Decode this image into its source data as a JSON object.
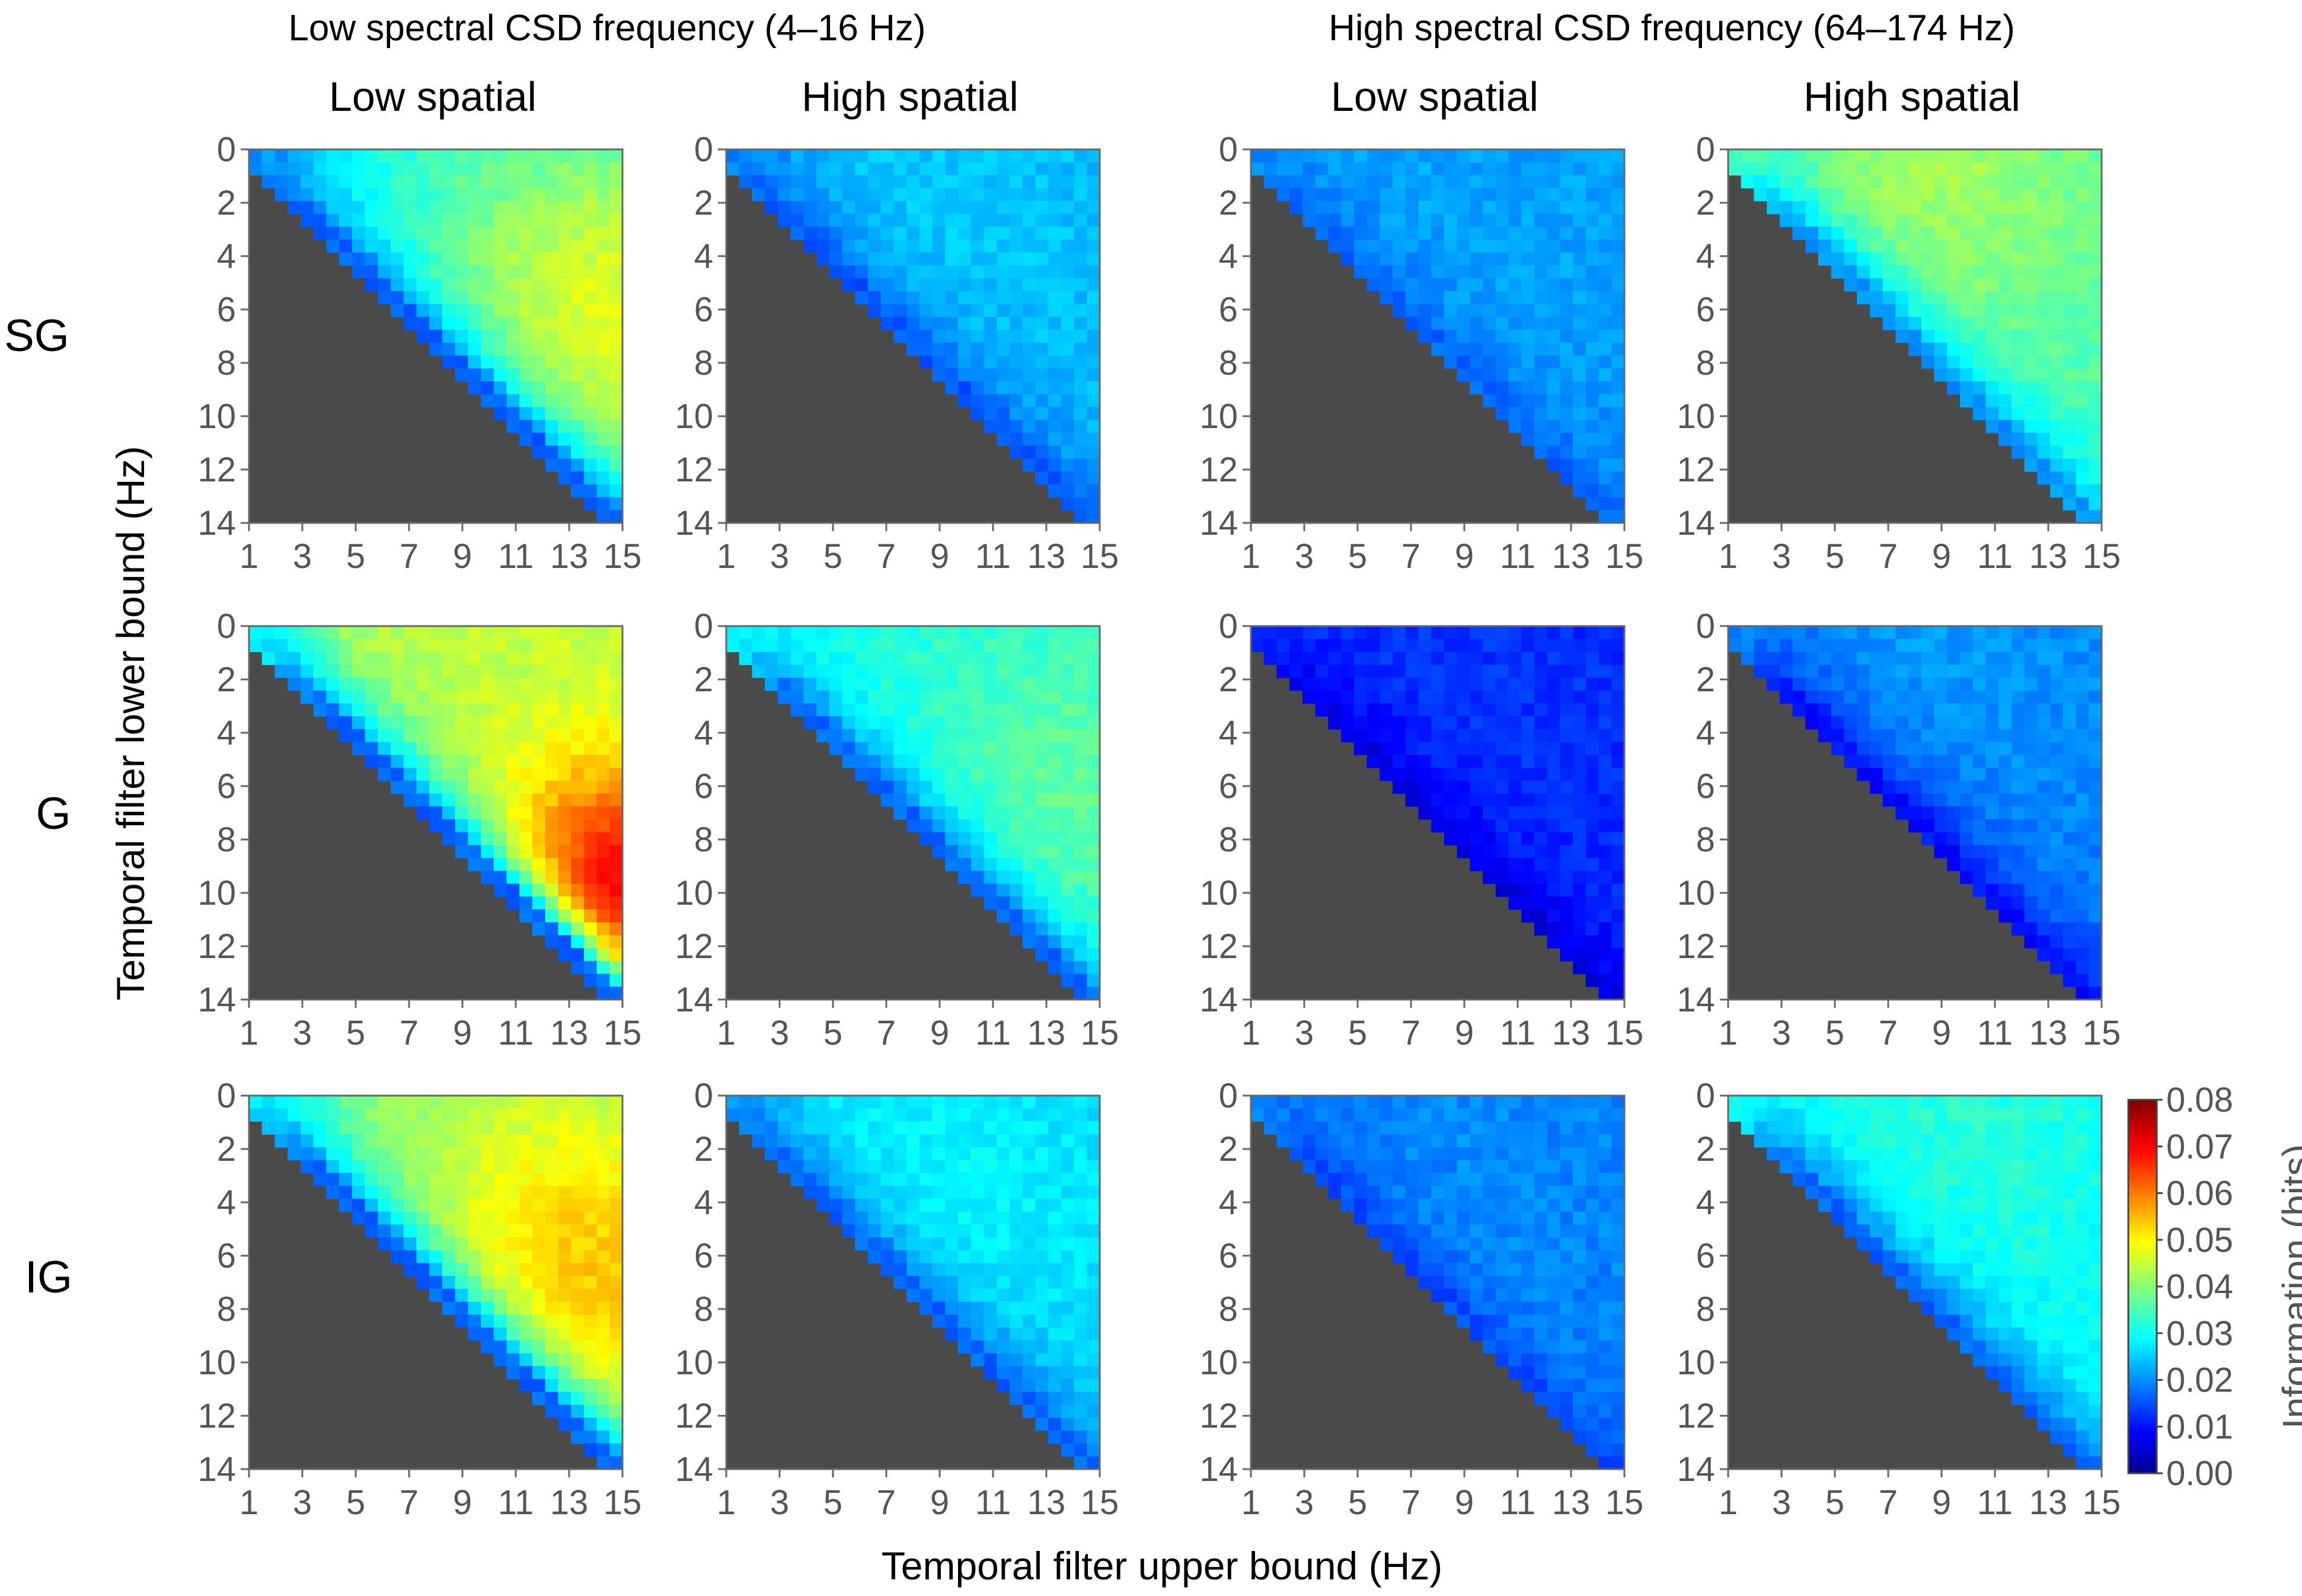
{
  "figure": {
    "group_titles": [
      "Low spectral CSD frequency (4–16 Hz)",
      "High spectral CSD frequency (64–174 Hz)"
    ],
    "column_titles": [
      "Low spatial",
      "High spatial",
      "Low spatial",
      "High spatial"
    ],
    "row_labels": [
      "SG",
      "G",
      "IG"
    ],
    "xlabel": "Temporal filter upper bound (Hz)",
    "ylabel": "Temporal filter lower bound (Hz)",
    "colorbar_label": "Information (bits)"
  },
  "chart_data": {
    "type": "heatmap",
    "layout": "3 rows x 4 columns of triangular heatmaps; cells below the diagonal are masked (dark gray)",
    "x_ticks": [
      "1",
      "3",
      "5",
      "7",
      "9",
      "11",
      "13",
      "15"
    ],
    "y_ticks": [
      "0",
      "2",
      "4",
      "6",
      "8",
      "10",
      "12",
      "14"
    ],
    "x_range": [
      1,
      15
    ],
    "y_range": [
      0,
      14
    ],
    "y_inverted": true,
    "mask_color": "#4a4a4a",
    "colorbar": {
      "min": 0.0,
      "max": 0.08,
      "ticks": [
        "0.00",
        "0.01",
        "0.02",
        "0.03",
        "0.04",
        "0.05",
        "0.06",
        "0.07",
        "0.08"
      ],
      "colormap": "jet",
      "placement": "right"
    },
    "panels": [
      {
        "row": "SG",
        "band": "Low spectral CSD frequency (4–16 Hz)",
        "spatial": "Low spatial",
        "base": 0.03,
        "diag": 0.018,
        "peak": 0.048,
        "peak_x": 14.5,
        "peak_y": 6.5,
        "peak_spread": 5.5,
        "corner": 0.022
      },
      {
        "row": "SG",
        "band": "Low spectral CSD frequency (4–16 Hz)",
        "spatial": "High spatial",
        "base": 0.024,
        "diag": 0.017,
        "peak": 0.026,
        "peak_x": 8.0,
        "peak_y": 3.0,
        "peak_spread": 6.0,
        "corner": 0.02
      },
      {
        "row": "SG",
        "band": "High spectral CSD frequency (64–174 Hz)",
        "spatial": "Low spatial",
        "base": 0.022,
        "diag": 0.018,
        "peak": 0.023,
        "peak_x": 8.0,
        "peak_y": 3.0,
        "peak_spread": 6.0,
        "corner": 0.021
      },
      {
        "row": "SG",
        "band": "High spectral CSD frequency (64–174 Hz)",
        "spatial": "High spatial",
        "base": 0.036,
        "diag": 0.022,
        "peak": 0.043,
        "peak_x": 8.0,
        "peak_y": 1.0,
        "peak_spread": 5.0,
        "corner": 0.036
      },
      {
        "row": "G",
        "band": "Low spectral CSD frequency (4–16 Hz)",
        "spatial": "Low spatial",
        "base": 0.045,
        "diag": 0.018,
        "peak": 0.075,
        "peak_x": 15.0,
        "peak_y": 10.5,
        "peak_spread": 3.5,
        "corner": 0.03
      },
      {
        "row": "G",
        "band": "Low spectral CSD frequency (4–16 Hz)",
        "spatial": "High spatial",
        "base": 0.032,
        "diag": 0.018,
        "peak": 0.038,
        "peak_x": 14.0,
        "peak_y": 7.0,
        "peak_spread": 5.0,
        "corner": 0.03
      },
      {
        "row": "G",
        "band": "High spectral CSD frequency (64–174 Hz)",
        "spatial": "Low spatial",
        "base": 0.013,
        "diag": 0.008,
        "peak": 0.014,
        "peak_x": 8.0,
        "peak_y": 3.0,
        "peak_spread": 6.0,
        "corner": 0.014
      },
      {
        "row": "G",
        "band": "High spectral CSD frequency (64–174 Hz)",
        "spatial": "High spatial",
        "base": 0.02,
        "diag": 0.011,
        "peak": 0.022,
        "peak_x": 8.0,
        "peak_y": 1.0,
        "peak_spread": 6.0,
        "corner": 0.02
      },
      {
        "row": "IG",
        "band": "Low spectral CSD frequency (4–16 Hz)",
        "spatial": "Low spatial",
        "base": 0.04,
        "diag": 0.018,
        "peak": 0.055,
        "peak_x": 13.5,
        "peak_y": 7.0,
        "peak_spread": 5.0,
        "corner": 0.028
      },
      {
        "row": "IG",
        "band": "Low spectral CSD frequency (4–16 Hz)",
        "spatial": "High spatial",
        "base": 0.026,
        "diag": 0.018,
        "peak": 0.03,
        "peak_x": 8.0,
        "peak_y": 4.0,
        "peak_spread": 6.0,
        "corner": 0.022
      },
      {
        "row": "IG",
        "band": "High spectral CSD frequency (64–174 Hz)",
        "spatial": "Low spatial",
        "base": 0.02,
        "diag": 0.016,
        "peak": 0.021,
        "peak_x": 8.0,
        "peak_y": 4.0,
        "peak_spread": 6.0,
        "corner": 0.02
      },
      {
        "row": "IG",
        "band": "High spectral CSD frequency (64–174 Hz)",
        "spatial": "High spatial",
        "base": 0.03,
        "diag": 0.018,
        "peak": 0.033,
        "peak_x": 8.0,
        "peak_y": 1.0,
        "peak_spread": 6.0,
        "corner": 0.03
      }
    ]
  }
}
